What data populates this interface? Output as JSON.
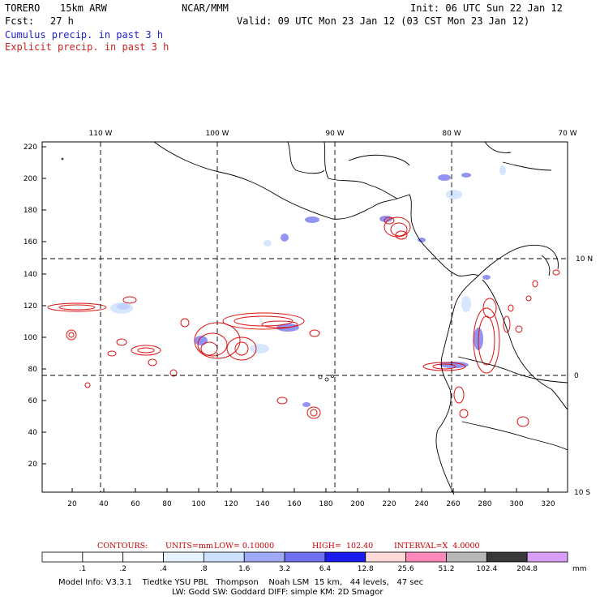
{
  "header": {
    "model": "TORERO",
    "resolution": "15km ARW",
    "org": "NCAR/MMM",
    "init": "Init: 06 UTC Sun 22 Jan 12",
    "fcst_label": "Fcst:",
    "fcst_value": "27 h",
    "valid": "Valid: 09 UTC Mon 23 Jan 12 (03 CST Mon 23 Jan 12)",
    "line1": "Cumulus precip. in past 3 h",
    "line2": "Explicit precip. in past 3 h"
  },
  "map": {
    "top_lon_labels": [
      "110 W",
      "100 W",
      "90 W",
      "80 W",
      "70 W"
    ],
    "right_lat_labels": [
      "10 N",
      "0",
      "10 S"
    ],
    "y_ticks": [
      "220",
      "200",
      "180",
      "160",
      "140",
      "120",
      "100",
      "80",
      "60",
      "40",
      "20"
    ],
    "x_ticks": [
      "20",
      "40",
      "60",
      "80",
      "100",
      "120",
      "140",
      "160",
      "180",
      "200",
      "220",
      "240",
      "260",
      "280",
      "300",
      "320"
    ]
  },
  "caption": {
    "contours": "CONTOURS:",
    "units": "UNITS=mm",
    "low": "LOW= 0.10000",
    "high": "HIGH=  102.40",
    "interval": "INTERVAL=X  4.0000"
  },
  "colorbar": {
    "labels": [
      ".1",
      ".2",
      ".4",
      ".8",
      "1.6",
      "3.2",
      "6.4",
      "12.8",
      "25.6",
      "51.2",
      "102.4",
      "204.8"
    ],
    "unit": "mm",
    "colors": [
      "#ffffff",
      "#ffffff",
      "#ffffff",
      "#e6f2ff",
      "#cce0ff",
      "#9eaaf5",
      "#6e70f0",
      "#1a1aee",
      "#ffd8d8",
      "#ff88bb",
      "#b8b8b8",
      "#383838",
      "#d99ef5"
    ]
  },
  "footer": {
    "line1": "Model Info: V3.3.1    Tiedtke YSU PBL   Thompson    Noah LSM  15 km,   44 levels,   47 sec",
    "line2": "LW: Godd SW: Goddard DIFF: simple KM: 2D Smagor"
  }
}
